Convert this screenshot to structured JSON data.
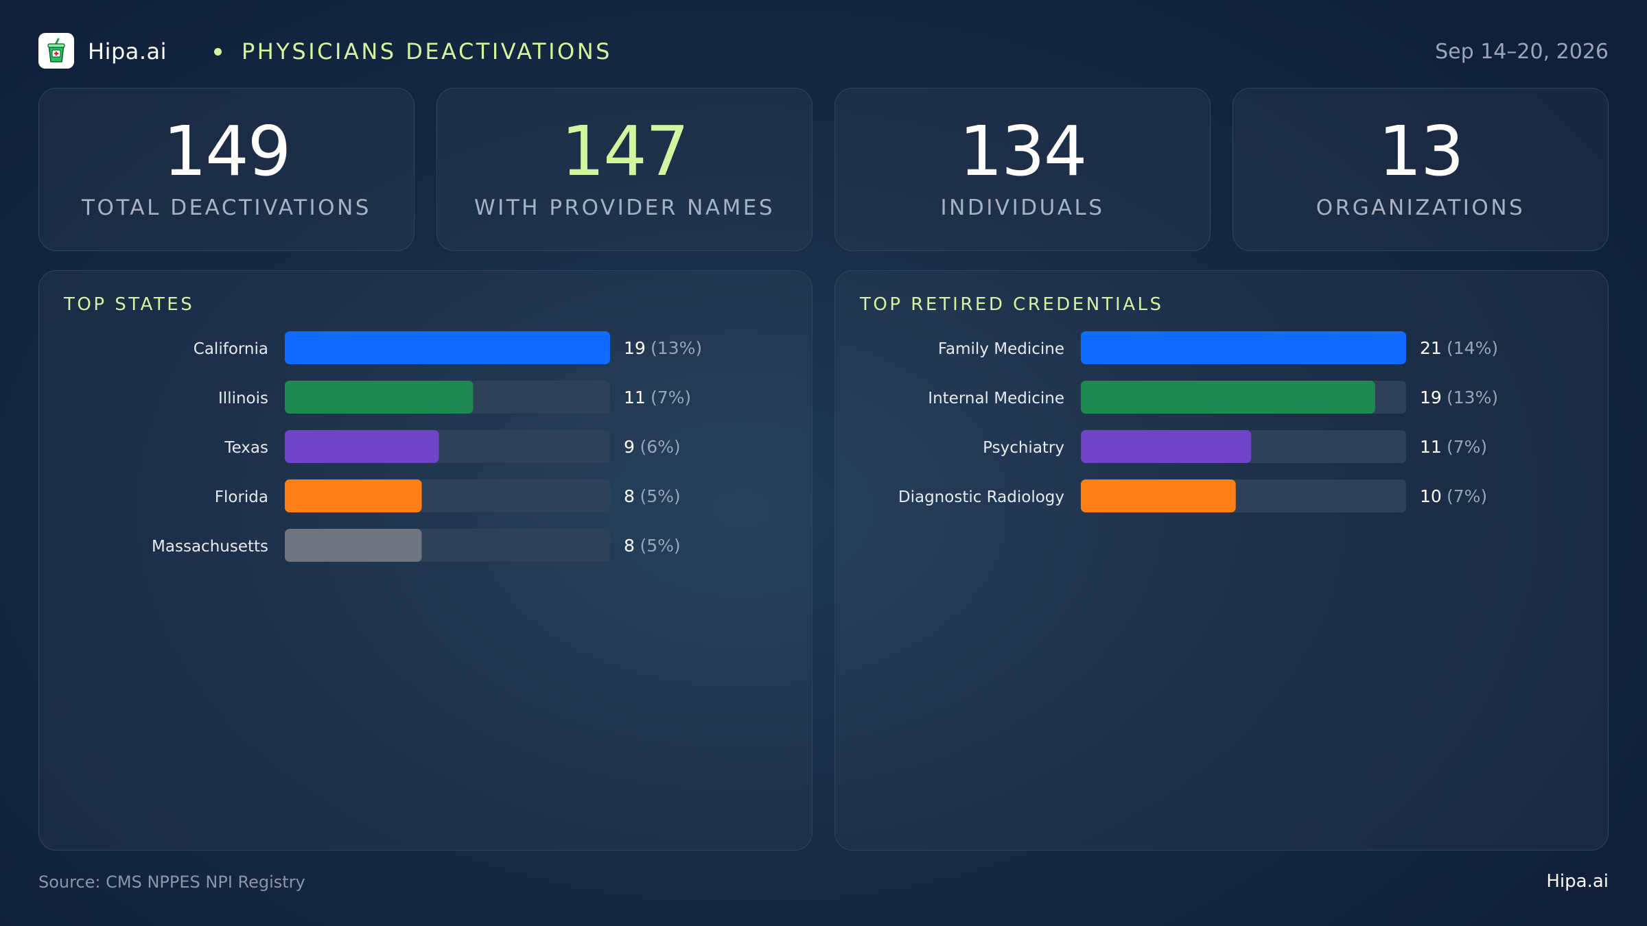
{
  "header": {
    "brand": "Hipa.ai",
    "section_title": "PHYSICIANS DEACTIVATIONS",
    "date_range": "Sep 14–20, 2026"
  },
  "stats": [
    {
      "value": "149",
      "label": "TOTAL DEACTIVATIONS",
      "accent": false
    },
    {
      "value": "147",
      "label": "WITH PROVIDER NAMES",
      "accent": true
    },
    {
      "value": "134",
      "label": "INDIVIDUALS",
      "accent": false
    },
    {
      "value": "13",
      "label": "ORGANIZATIONS",
      "accent": false
    }
  ],
  "panels": {
    "states_title": "TOP STATES",
    "credentials_title": "TOP RETIRED CREDENTIALS"
  },
  "chart_data": [
    {
      "type": "bar",
      "orientation": "horizontal",
      "title": "TOP STATES",
      "categories": [
        "California",
        "Illinois",
        "Texas",
        "Florida",
        "Massachusetts"
      ],
      "values": [
        19,
        11,
        9,
        8,
        8
      ],
      "value_labels": [
        "19",
        "11",
        "9",
        "8",
        "8"
      ],
      "percent_labels": [
        "(13%)",
        "(7%)",
        "(6%)",
        "(5%)",
        "(5%)"
      ],
      "xlim": [
        0,
        19
      ],
      "colors": [
        "#0f6cff",
        "#1e8a52",
        "#6f44c6",
        "#ff7f17",
        "#6e7580"
      ],
      "track_color": "#2d4158",
      "grid": false
    },
    {
      "type": "bar",
      "orientation": "horizontal",
      "title": "TOP RETIRED CREDENTIALS",
      "categories": [
        "Family Medicine",
        "Internal Medicine",
        "Psychiatry",
        "Diagnostic Radiology"
      ],
      "values": [
        21,
        19,
        11,
        10
      ],
      "value_labels": [
        "21",
        "19",
        "11",
        "10"
      ],
      "percent_labels": [
        "(14%)",
        "(13%)",
        "(7%)",
        "(7%)"
      ],
      "xlim": [
        0,
        21
      ],
      "colors": [
        "#0f6cff",
        "#1e8a52",
        "#6f44c6",
        "#ff7f17"
      ],
      "track_color": "#2d4158",
      "grid": false
    }
  ],
  "footer": {
    "source": "Source: CMS NPPES NPI Registry",
    "brand": "Hipa.ai"
  }
}
